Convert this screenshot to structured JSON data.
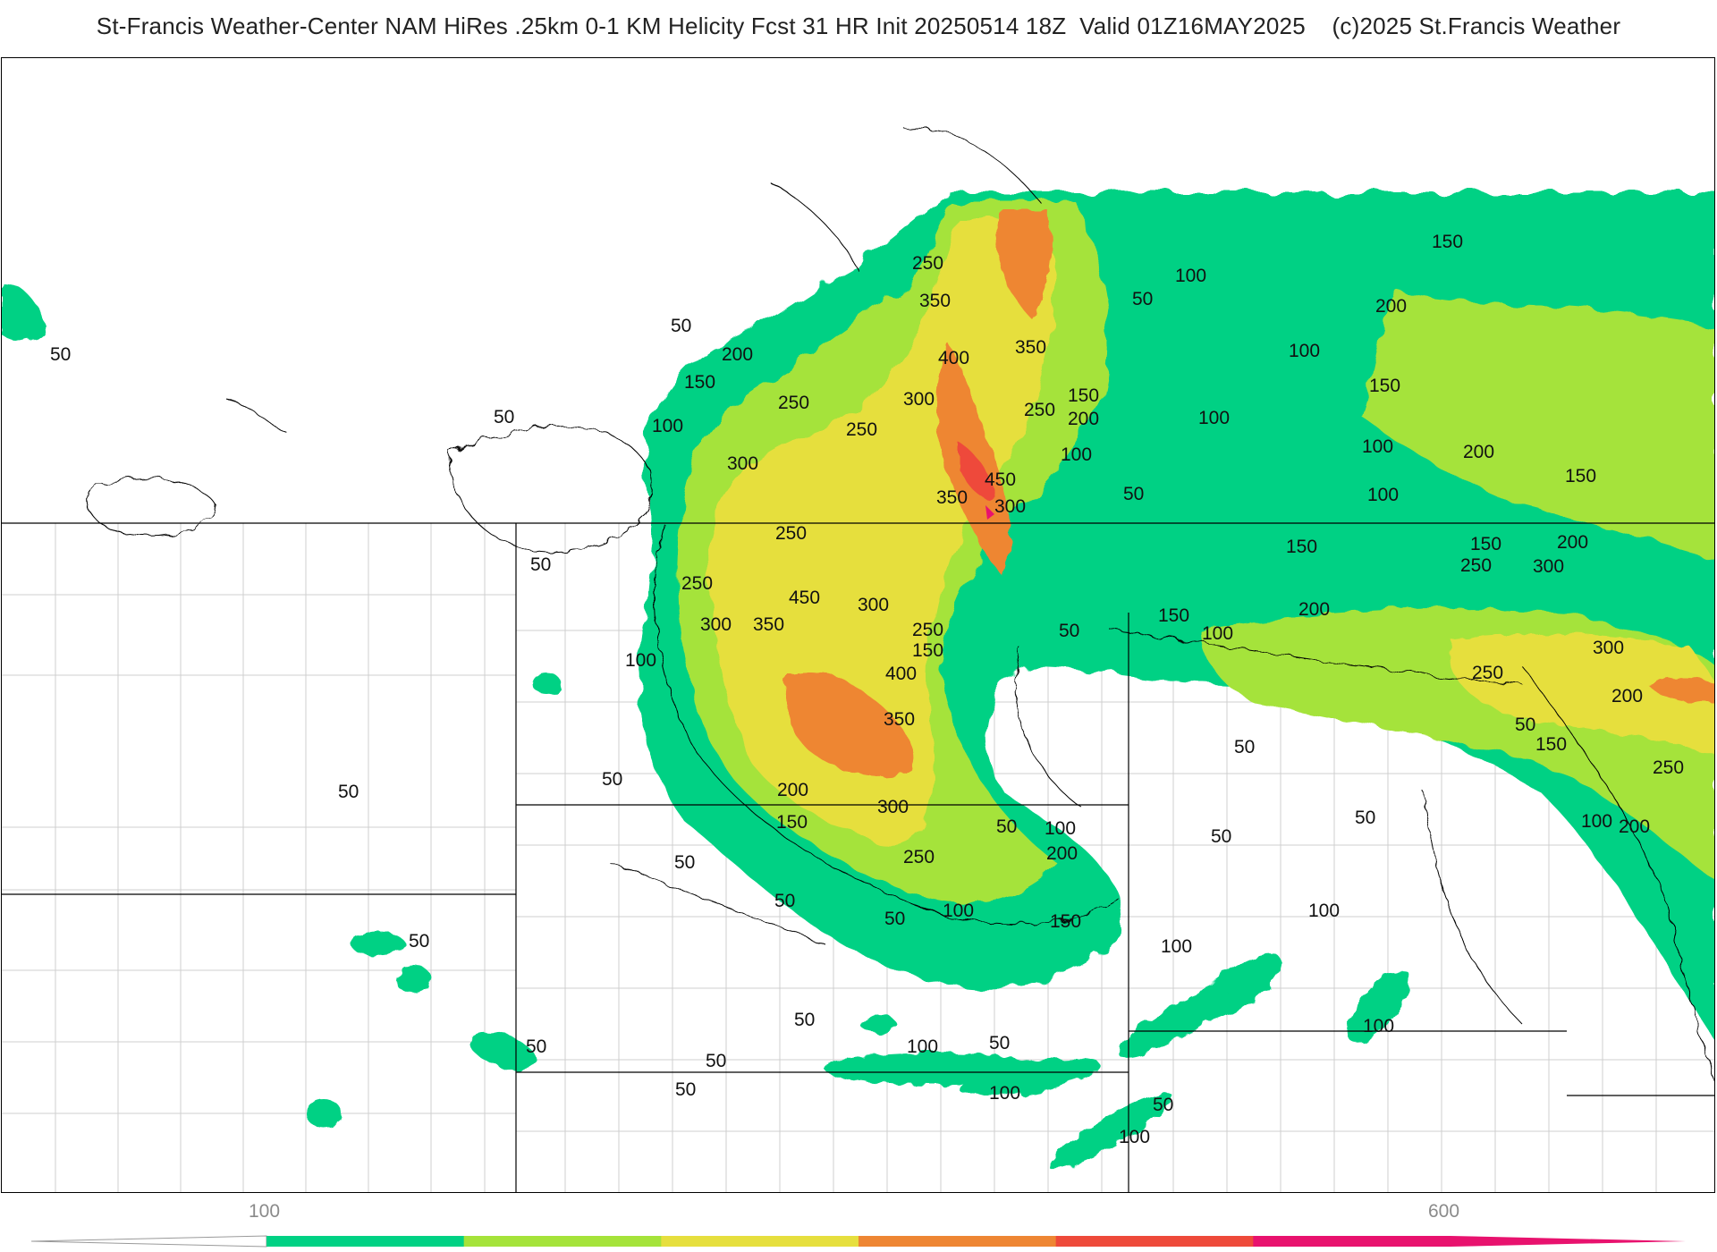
{
  "title": "St-Francis Weather-Center NAM HiRes .25km 0-1 KM Helicity Fcst 31 HR Init 20250514 18Z  Valid 01Z16MAY2025    (c)2025 St.Francis Weather",
  "colors": {
    "c50": "#00d184",
    "c100": "#00d184",
    "c150": "#5fd85a",
    "c200": "#a5e33a",
    "c250": "#c9e63a",
    "c300": "#e6df3e",
    "c350": "#e9c23b",
    "c400": "#ee8633",
    "c450": "#ee4a3a",
    "c500": "#e8126e"
  },
  "contour_labels": [
    "50",
    "100",
    "150",
    "200",
    "250",
    "300",
    "350",
    "400",
    "450"
  ],
  "labels": [
    {
      "text": "50"
    },
    {
      "text": "100"
    },
    {
      "text": "150"
    },
    {
      "text": "200"
    },
    {
      "text": "250"
    },
    {
      "text": "300"
    },
    {
      "text": "350"
    },
    {
      "text": "400"
    },
    {
      "text": "450"
    }
  ],
  "colorbar": {
    "segments": [
      "#00d184",
      "#a5e33a",
      "#e6df3e",
      "#ee8633",
      "#ee4a3a",
      "#e8126e"
    ],
    "tick_labels": [
      "100",
      "600"
    ]
  }
}
